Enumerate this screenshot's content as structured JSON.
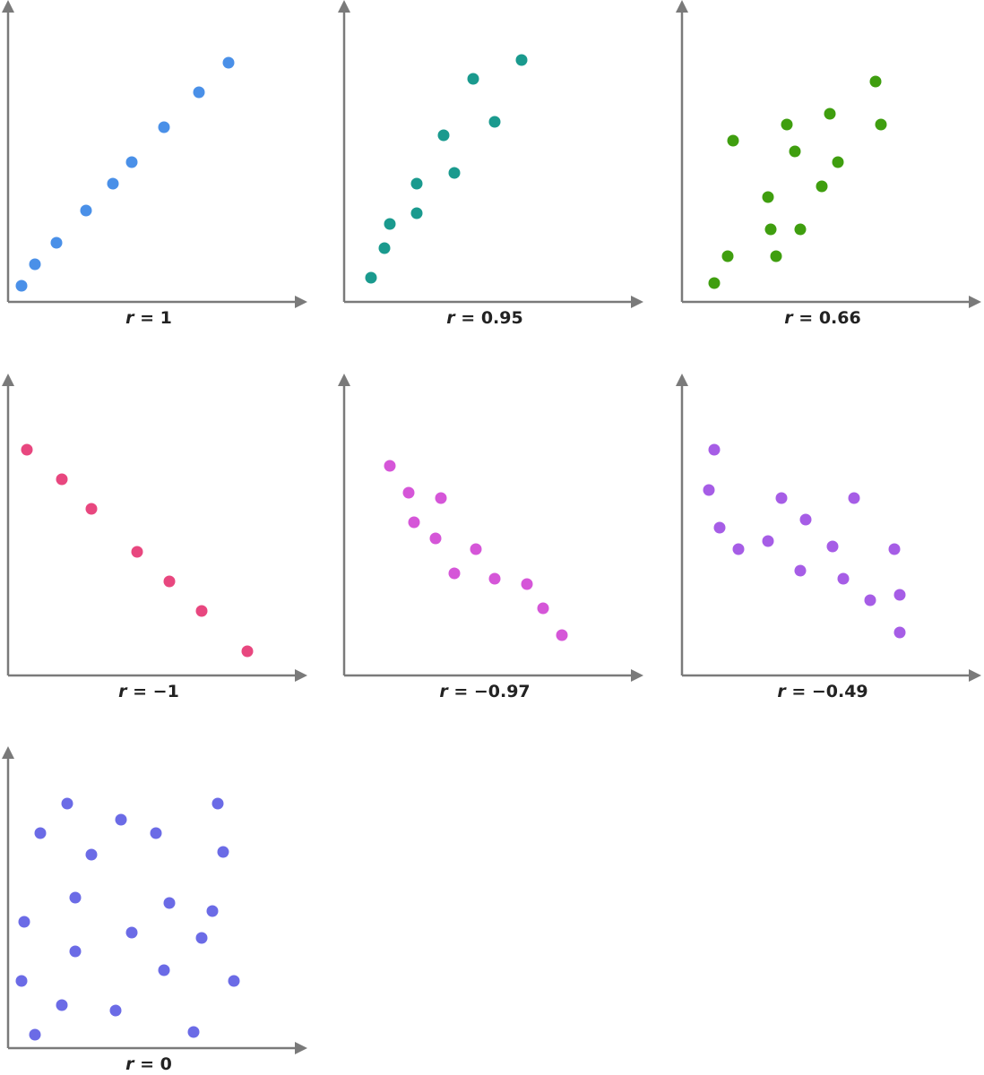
{
  "chart_data": [
    {
      "type": "scatter",
      "caption_var": "r",
      "caption_value": " = 1",
      "color": "#4a90e8",
      "xlim": [
        0,
        10
      ],
      "ylim": [
        0,
        10
      ],
      "points": [
        [
          0.5,
          0.6
        ],
        [
          1.0,
          1.4
        ],
        [
          1.8,
          2.2
        ],
        [
          2.9,
          3.4
        ],
        [
          3.9,
          4.4
        ],
        [
          4.6,
          5.2
        ],
        [
          5.8,
          6.5
        ],
        [
          7.1,
          7.8
        ],
        [
          8.2,
          8.9
        ]
      ]
    },
    {
      "type": "scatter",
      "caption_var": "r",
      "caption_value": " = 0.95",
      "color": "#1a9a8e",
      "xlim": [
        0,
        10
      ],
      "ylim": [
        0,
        10
      ],
      "points": [
        [
          1.0,
          0.9
        ],
        [
          1.5,
          2.0
        ],
        [
          1.7,
          2.9
        ],
        [
          2.7,
          3.3
        ],
        [
          2.7,
          4.4
        ],
        [
          3.7,
          6.2
        ],
        [
          4.1,
          4.8
        ],
        [
          4.8,
          8.3
        ],
        [
          5.6,
          6.7
        ],
        [
          6.6,
          9.0
        ]
      ]
    },
    {
      "type": "scatter",
      "caption_var": "r",
      "caption_value": " = 0.66",
      "color": "#3f9e0f",
      "xlim": [
        0,
        10
      ],
      "ylim": [
        0,
        10
      ],
      "points": [
        [
          1.2,
          0.7
        ],
        [
          1.7,
          1.7
        ],
        [
          1.9,
          6.0
        ],
        [
          3.2,
          3.9
        ],
        [
          3.3,
          2.7
        ],
        [
          3.5,
          1.7
        ],
        [
          3.9,
          6.6
        ],
        [
          4.2,
          5.6
        ],
        [
          4.4,
          2.7
        ],
        [
          5.2,
          4.3
        ],
        [
          5.5,
          7.0
        ],
        [
          5.8,
          5.2
        ],
        [
          7.2,
          8.2
        ],
        [
          7.4,
          6.6
        ]
      ]
    },
    {
      "type": "scatter",
      "caption_var": "r",
      "caption_value": " = −1",
      "color": "#e8477f",
      "xlim": [
        0,
        10
      ],
      "ylim": [
        0,
        10
      ],
      "points": [
        [
          0.7,
          8.4
        ],
        [
          2.0,
          7.3
        ],
        [
          3.1,
          6.2
        ],
        [
          4.8,
          4.6
        ],
        [
          6.0,
          3.5
        ],
        [
          7.2,
          2.4
        ],
        [
          8.9,
          0.9
        ]
      ]
    },
    {
      "type": "scatter",
      "caption_var": "r",
      "caption_value": " = −0.97",
      "color": "#d556d8",
      "xlim": [
        0,
        10
      ],
      "ylim": [
        0,
        10
      ],
      "points": [
        [
          1.7,
          7.8
        ],
        [
          2.4,
          6.8
        ],
        [
          2.6,
          5.7
        ],
        [
          3.4,
          5.1
        ],
        [
          3.6,
          6.6
        ],
        [
          4.1,
          3.8
        ],
        [
          4.9,
          4.7
        ],
        [
          5.6,
          3.6
        ],
        [
          6.8,
          3.4
        ],
        [
          7.4,
          2.5
        ],
        [
          8.1,
          1.5
        ]
      ]
    },
    {
      "type": "scatter",
      "caption_var": "r",
      "caption_value": " = −0.49",
      "color": "#a65de6",
      "xlim": [
        0,
        10
      ],
      "ylim": [
        0,
        10
      ],
      "points": [
        [
          1.2,
          8.4
        ],
        [
          1.0,
          6.9
        ],
        [
          1.4,
          5.5
        ],
        [
          2.1,
          4.7
        ],
        [
          3.2,
          5.0
        ],
        [
          3.7,
          6.6
        ],
        [
          4.4,
          3.9
        ],
        [
          4.6,
          5.8
        ],
        [
          5.6,
          4.8
        ],
        [
          6.0,
          3.6
        ],
        [
          6.4,
          6.6
        ],
        [
          7.0,
          2.8
        ],
        [
          7.9,
          4.7
        ],
        [
          8.1,
          3.0
        ],
        [
          8.1,
          1.6
        ]
      ]
    },
    {
      "type": "scatter",
      "caption_var": "r",
      "caption_value": " = 0",
      "color": "#6b6be6",
      "xlim": [
        0,
        10
      ],
      "ylim": [
        0,
        10
      ],
      "points": [
        [
          2.2,
          9.1
        ],
        [
          1.2,
          8.0
        ],
        [
          3.1,
          7.2
        ],
        [
          4.2,
          8.5
        ],
        [
          5.5,
          8.0
        ],
        [
          7.8,
          9.1
        ],
        [
          8.0,
          7.3
        ],
        [
          2.5,
          5.6
        ],
        [
          6.0,
          5.4
        ],
        [
          7.6,
          5.1
        ],
        [
          0.6,
          4.7
        ],
        [
          4.6,
          4.3
        ],
        [
          7.2,
          4.1
        ],
        [
          2.5,
          3.6
        ],
        [
          5.8,
          2.9
        ],
        [
          0.5,
          2.5
        ],
        [
          8.4,
          2.5
        ],
        [
          2.0,
          1.6
        ],
        [
          4.0,
          1.4
        ],
        [
          1.0,
          0.5
        ],
        [
          6.9,
          0.6
        ]
      ]
    }
  ]
}
